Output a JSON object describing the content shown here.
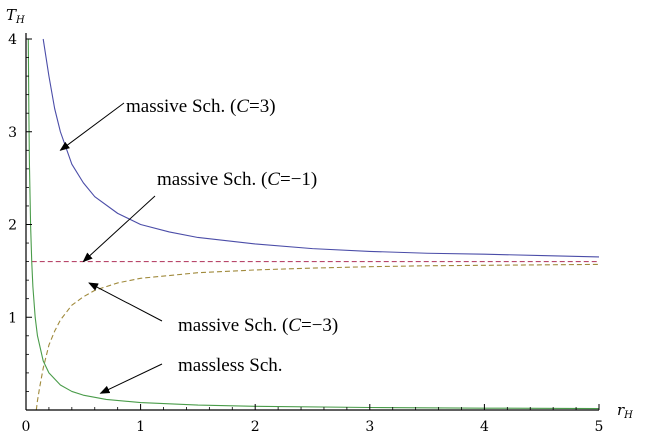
{
  "chart_data": {
    "type": "line",
    "title": "",
    "xlabel": {
      "main": "r",
      "sub": "H"
    },
    "ylabel": {
      "main": "T",
      "sub": "H"
    },
    "xlim": [
      0,
      5
    ],
    "ylim": [
      0,
      4
    ],
    "xticks": [
      0,
      1,
      2,
      3,
      4,
      5
    ],
    "yticks": [
      1,
      2,
      3,
      4
    ],
    "grid": false,
    "legend": "none",
    "series": [
      {
        "id": "massive_C3",
        "color": "#4b4da8",
        "dash": "solid",
        "x": [
          0.15,
          0.2,
          0.25,
          0.3,
          0.4,
          0.5,
          0.6,
          0.8,
          1.0,
          1.25,
          1.5,
          2.0,
          2.5,
          3.0,
          3.5,
          4.0,
          4.5,
          5.0
        ],
        "y": [
          4.0,
          3.6,
          3.25,
          3.0,
          2.65,
          2.45,
          2.3,
          2.12,
          2.0,
          1.92,
          1.86,
          1.79,
          1.74,
          1.71,
          1.69,
          1.68,
          1.665,
          1.65
        ]
      },
      {
        "id": "massive_Cm1",
        "color": "#b8476b",
        "dash": "dashed",
        "x": [
          0.05,
          5.0
        ],
        "y": [
          1.6,
          1.6
        ]
      },
      {
        "id": "massive_Cm3",
        "color": "#a08a3c",
        "dash": "dashed",
        "x": [
          0.09,
          0.1,
          0.12,
          0.15,
          0.2,
          0.25,
          0.3,
          0.4,
          0.5,
          0.6,
          0.8,
          1.0,
          1.5,
          2.0,
          2.5,
          3.0,
          3.5,
          4.0,
          4.5,
          5.0
        ],
        "y": [
          0.0,
          0.1,
          0.25,
          0.45,
          0.7,
          0.85,
          0.97,
          1.13,
          1.22,
          1.29,
          1.37,
          1.42,
          1.48,
          1.51,
          1.53,
          1.545,
          1.555,
          1.56,
          1.565,
          1.57
        ]
      },
      {
        "id": "massless",
        "color": "#4a9c4a",
        "dash": "solid",
        "x": [
          0.02,
          0.025,
          0.03,
          0.04,
          0.05,
          0.06,
          0.08,
          0.1,
          0.15,
          0.2,
          0.3,
          0.4,
          0.5,
          0.7,
          1.0,
          1.5,
          2.0,
          3.0,
          4.0,
          5.0
        ],
        "y": [
          4.0,
          3.2,
          2.65,
          2.0,
          1.6,
          1.33,
          1.0,
          0.8,
          0.53,
          0.4,
          0.27,
          0.2,
          0.16,
          0.114,
          0.08,
          0.053,
          0.04,
          0.027,
          0.02,
          0.016
        ]
      }
    ],
    "annotations": [
      {
        "id": "a1",
        "text_pre": "massive Sch. (",
        "text_var": "C",
        "text_post": "=3)",
        "arrow_to": [
          0.3,
          2.8
        ]
      },
      {
        "id": "a2",
        "text_pre": "massive Sch. (",
        "text_var": "C",
        "text_post": "=−1)",
        "arrow_to": [
          0.5,
          1.6
        ]
      },
      {
        "id": "a3",
        "text_pre": "massive Sch. (",
        "text_var": "C",
        "text_post": "=−3)",
        "arrow_to": [
          0.55,
          1.37
        ]
      },
      {
        "id": "a4",
        "text_pre": "massless Sch.",
        "text_var": "",
        "text_post": "",
        "arrow_to": [
          0.65,
          0.18
        ]
      }
    ]
  }
}
